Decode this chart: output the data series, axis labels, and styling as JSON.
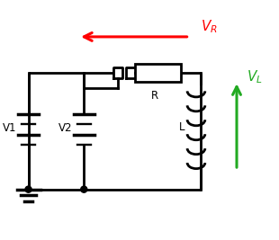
{
  "bg_color": "#ffffff",
  "line_color": "#000000",
  "red_color": "#ff0000",
  "green_color": "#22aa22",
  "line_width": 2.0,
  "vr_label": "$V_R$",
  "vl_label": "$V_L$",
  "r_label": "R",
  "l_label": "L",
  "v1_label": "V1",
  "v2_label": "V2",
  "figsize": [
    3.1,
    2.67
  ],
  "dpi": 100
}
